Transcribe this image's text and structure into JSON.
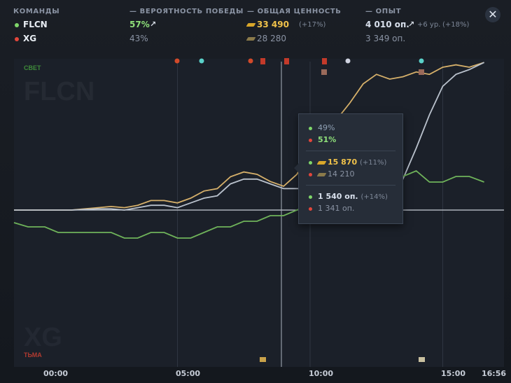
{
  "header": {
    "teams_label": "КОМАНДЫ",
    "win_label": "— ВЕРОЯТНОСТЬ ПОБЕДЫ",
    "networth_label": "— ОБЩАЯ ЦЕННОСТЬ",
    "xp_label": "— ОПЫТ"
  },
  "teams": [
    {
      "name": "FLCN",
      "dot_color": "#7fd66a",
      "win": "57%",
      "win_arrow": "↗",
      "networth": "33 490",
      "networth_delta": "(+17%)",
      "xp": "4 010 оп.",
      "xp_arrow": "↗",
      "xp_levels": "+6 ур.",
      "xp_delta": "(+18%)"
    },
    {
      "name": "XG",
      "dot_color": "#e2463b",
      "win": "43%",
      "networth": "28 280",
      "xp": "3 349 оп."
    }
  ],
  "chart": {
    "radiant_label": "СВЕТ",
    "dire_label": "ТЬМА",
    "radiant_watermark": "FLCN",
    "dire_watermark": "XG",
    "x_ticks": [
      "00:00",
      "05:00",
      "10:00",
      "15:00",
      "16:56"
    ]
  },
  "tooltip": {
    "win_flcn": "49%",
    "win_xg": "51%",
    "nw_flcn": "15 870",
    "nw_flcn_delta": "(+11%)",
    "nw_xg": "14 210",
    "xp_flcn": "1 540 оп.",
    "xp_flcn_delta": "(+14%)",
    "xp_xg": "1 341 оп."
  },
  "colors": {
    "accent_gold": "#d6b06a",
    "xp_line": "#b9c1cc",
    "win_line": "#6fb35a",
    "radiant": "#7fd66a",
    "dire": "#e2463b"
  },
  "chart_data": {
    "type": "line",
    "x_unit": "minutes",
    "xlim": [
      0,
      16.93
    ],
    "series": [
      {
        "name": "ОБЩАЯ ЦЕННОСТЬ",
        "color": "#d6b06a",
        "x": [
          0,
          1,
          2,
          2.5,
          3,
          3.5,
          4,
          4.5,
          5,
          5.5,
          6,
          6.5,
          7,
          7.5,
          8,
          8.5,
          9,
          9.5,
          10,
          10.5,
          11,
          11.5,
          12,
          12.5,
          13,
          13.5,
          14,
          14.5,
          15,
          15.5,
          16,
          16.56
        ],
        "y": [
          0,
          0,
          1,
          1.5,
          1,
          2,
          4,
          4,
          3,
          5,
          8,
          9,
          14,
          16,
          15,
          12,
          10,
          15,
          25,
          33,
          38,
          45,
          53,
          57,
          55,
          56,
          58,
          57,
          60,
          61,
          60,
          62
        ]
      },
      {
        "name": "ОПЫТ",
        "color": "#b9c1cc",
        "x": [
          0,
          1,
          2,
          2.5,
          3,
          3.5,
          4,
          4.5,
          5,
          5.5,
          6,
          6.5,
          7,
          7.5,
          8,
          8.5,
          9,
          9.5,
          10,
          10.5,
          11,
          11.5,
          12,
          12.5,
          13,
          13.5,
          14,
          14.5,
          15,
          15.5,
          16,
          16.56
        ],
        "y": [
          0,
          0,
          0.5,
          0.5,
          0,
          1,
          2,
          2,
          1,
          3,
          5,
          6,
          11,
          13,
          13,
          11,
          9,
          9,
          9,
          8,
          8,
          7,
          6,
          6,
          5,
          13,
          26,
          40,
          52,
          57,
          59,
          62
        ]
      },
      {
        "name": "ВЕРОЯТНОСТЬ ПОБЕДЫ",
        "color": "#6fb35a",
        "x": [
          0,
          0.5,
          1,
          1.5,
          2,
          2.5,
          3,
          3.5,
          4,
          4.5,
          5,
          5.5,
          6,
          6.5,
          7,
          7.5,
          8,
          8.5,
          9,
          9.5,
          10,
          10.5,
          11,
          11.5,
          12,
          12.5,
          13,
          13.5,
          14,
          14.5,
          15,
          15.5,
          16,
          16.56
        ],
        "y": [
          47,
          46,
          46,
          46,
          46,
          46,
          45,
          45,
          46,
          46,
          45,
          45,
          46,
          47,
          47,
          48,
          48,
          49,
          49,
          50,
          51,
          51,
          52,
          52,
          54,
          54,
          55,
          56,
          57,
          55,
          55,
          56,
          56,
          55
        ]
      }
    ]
  }
}
